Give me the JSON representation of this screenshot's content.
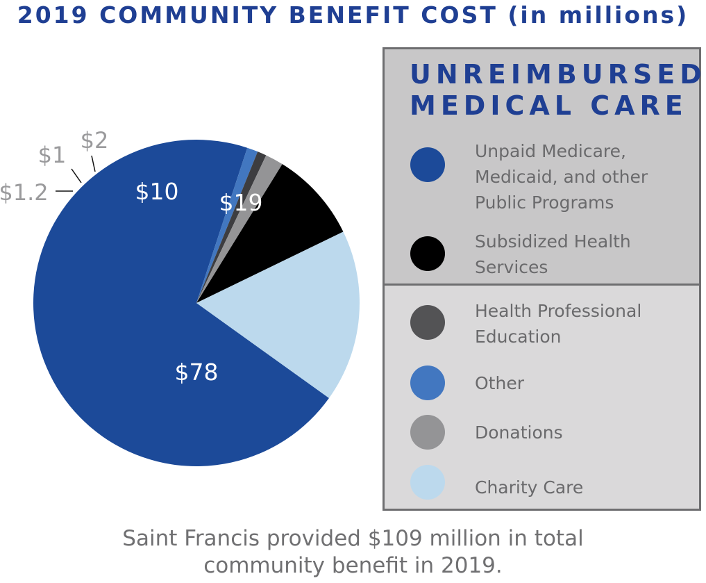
{
  "title": "2019 COMMUNITY BENEFIT COST (in millions)",
  "legend": {
    "heading_line1": "UNREIMBURSED",
    "heading_line2": "MEDICAL CARE",
    "items": [
      {
        "label": "Unpaid Medicare, Medicaid, and other Public Programs",
        "color": "#1c4a99"
      },
      {
        "label": "Subsidized Health Services",
        "color": "#000000"
      },
      {
        "label": "Health Professional Education",
        "color": "#535355"
      },
      {
        "label": "Other",
        "color": "#4277c0"
      },
      {
        "label": "Donations",
        "color": "#949496"
      },
      {
        "label": "Charity Care",
        "color": "#bcd9ed"
      }
    ]
  },
  "chart_data": {
    "type": "pie",
    "title": "2019 COMMUNITY BENEFIT COST (in millions)",
    "slices": [
      {
        "name": "Unpaid Medicare, Medicaid, and other Public Programs",
        "value": 78,
        "label": "$78",
        "color": "#1c4a99"
      },
      {
        "name": "Other",
        "value": 1.2,
        "label": "$1.2",
        "color": "#4277c0"
      },
      {
        "name": "Health Professional Education",
        "value": 1,
        "label": "$1",
        "color": "#3d3d40"
      },
      {
        "name": "Donations",
        "value": 2,
        "label": "$2",
        "color": "#949496"
      },
      {
        "name": "Subsidized Health Services",
        "value": 10,
        "label": "$10",
        "color": "#000000"
      },
      {
        "name": "Charity Care",
        "value": 19,
        "label": "$19",
        "color": "#bcd9ed"
      }
    ]
  },
  "footer": {
    "line1": "Saint Francis provided $109 million in total",
    "line2": "community benefit in 2019."
  }
}
